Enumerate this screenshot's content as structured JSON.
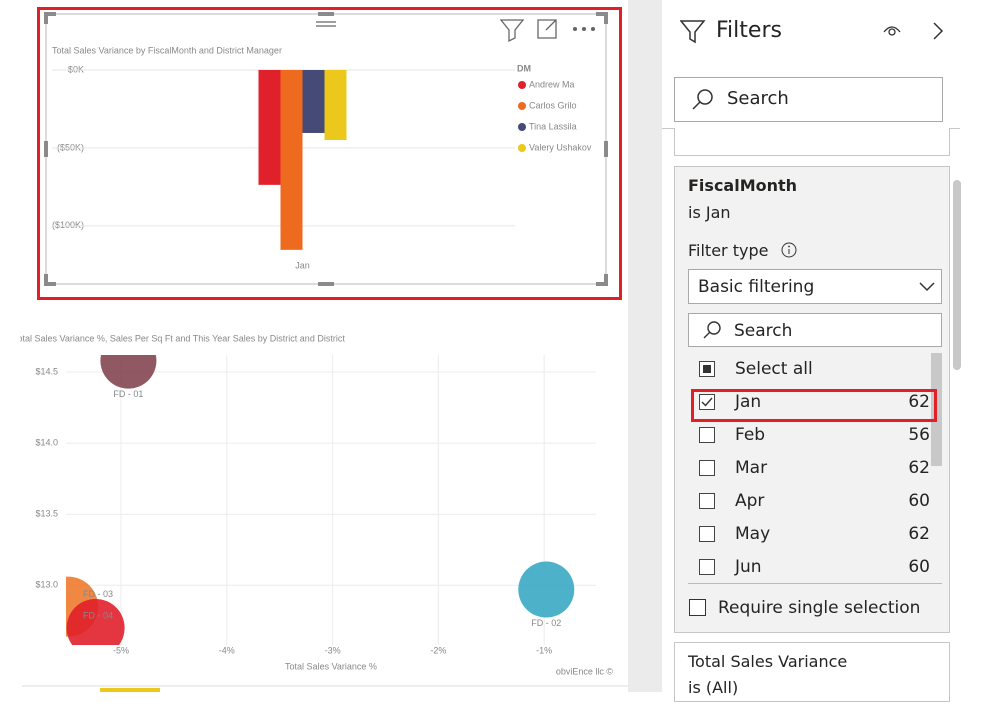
{
  "chart_data": [
    {
      "type": "bar",
      "title": "Total Sales Variance by FiscalMonth and District Manager",
      "categories": [
        "Jan"
      ],
      "legend_title": "DM",
      "series": [
        {
          "name": "Andrew Ma",
          "color": "#e0202b",
          "values": [
            -73700
          ]
        },
        {
          "name": "Carlos Grilo",
          "color": "#ee6a1e",
          "values": [
            -115400
          ]
        },
        {
          "name": "Tina Lassila",
          "color": "#454a76",
          "values": [
            -40400
          ]
        },
        {
          "name": "Valery Ushakov",
          "color": "#ecc71c",
          "values": [
            -44900
          ]
        }
      ],
      "ylim": [
        -120000,
        0
      ],
      "yticks": [
        {
          "value": 0,
          "label": "$0K"
        },
        {
          "value": -50000,
          "label": "($50K)"
        },
        {
          "value": -100000,
          "label": "($100K)"
        }
      ],
      "grid": true,
      "legend": "right"
    },
    {
      "type": "scatter",
      "title": "Total Sales Variance %, Sales Per Sq Ft and This Year Sales by District and District",
      "x_label": "Total Sales Variance %",
      "points": [
        {
          "label": "FD - 01",
          "color": "#844652",
          "x": -4.93,
          "y": 14.58,
          "size": 28
        },
        {
          "label": "FD - 02",
          "color": "#3aa9c4",
          "x": -0.98,
          "y": 12.97,
          "size": 28
        },
        {
          "label": "FD - 03",
          "color": "#ee7a2e",
          "x": -5.5,
          "y": 12.85,
          "size": 30
        },
        {
          "label": "FD - 04",
          "color": "#e0202b",
          "x": -5.24,
          "y": 12.7,
          "size": 29
        }
      ],
      "xlim": [
        -5.52,
        -0.51
      ],
      "xticks": [
        {
          "value": -5,
          "label": "-5%"
        },
        {
          "value": -4,
          "label": "-4%"
        },
        {
          "value": -3,
          "label": "-3%"
        },
        {
          "value": -2,
          "label": "-2%"
        },
        {
          "value": -1,
          "label": "-1%"
        }
      ],
      "ylim": [
        12.58,
        14.62
      ],
      "yticks": [
        {
          "value": 14.5,
          "label": "$14.5"
        },
        {
          "value": 14,
          "label": "$14.0"
        },
        {
          "value": 13.5,
          "label": "$13.5"
        },
        {
          "value": 13,
          "label": "$13.0"
        }
      ],
      "grid": true,
      "watermark": "obviEnce llc ©"
    }
  ],
  "filters_pane": {
    "title": "Filters",
    "search": "Search",
    "card": {
      "field": "FiscalMonth",
      "summary": "is Jan",
      "filter_type_label": "Filter type",
      "filter_type": "Basic filtering",
      "search": "Search",
      "items": [
        {
          "label": "Select all",
          "state": "partial"
        },
        {
          "label": "Jan",
          "count": 62,
          "state": "checked"
        },
        {
          "label": "Feb",
          "count": 56,
          "state": "unchecked"
        },
        {
          "label": "Mar",
          "count": 62,
          "state": "unchecked"
        },
        {
          "label": "Apr",
          "count": 60,
          "state": "unchecked"
        },
        {
          "label": "May",
          "count": 62,
          "state": "unchecked"
        },
        {
          "label": "Jun",
          "count": 60,
          "state": "unchecked"
        }
      ],
      "require_single": "Require single selection"
    },
    "next_card": {
      "field": "Total Sales Variance",
      "summary": "is (All)"
    }
  }
}
